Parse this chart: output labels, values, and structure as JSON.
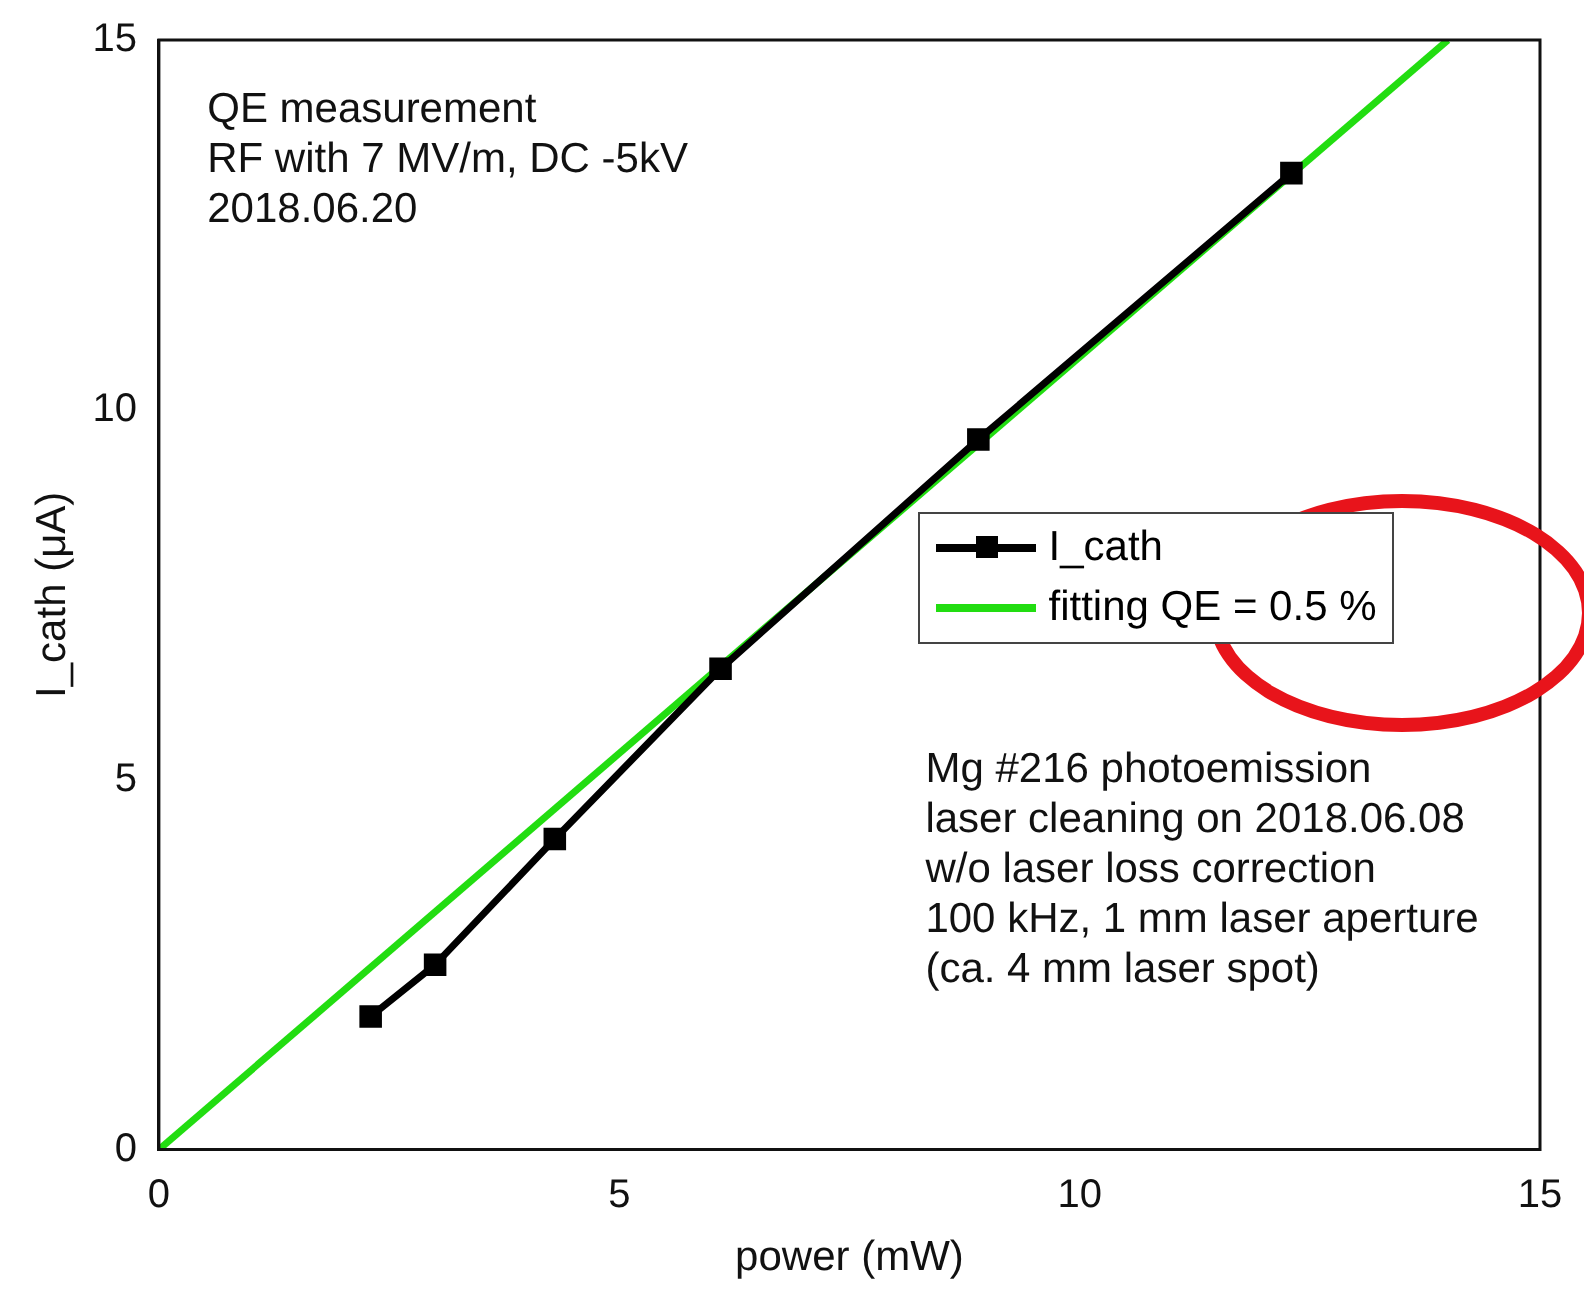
{
  "chart_data": {
    "type": "line",
    "xlabel": "power (mW)",
    "ylabel": "I_cath (μA)",
    "xlim": [
      0,
      15
    ],
    "xticks": [
      0,
      5,
      10,
      15
    ],
    "ylim": [
      0,
      15
    ],
    "yticks": [
      0,
      5,
      10,
      15
    ],
    "grid": false,
    "legend": "right",
    "series": [
      {
        "name": "I_cath",
        "color": "#000000",
        "marker": "square",
        "x": [
          2.3,
          3.0,
          4.3,
          6.1,
          8.9,
          12.3
        ],
        "values": [
          1.8,
          2.5,
          4.2,
          6.5,
          9.6,
          13.2
        ]
      },
      {
        "name": "fitting QE = 0.5 %",
        "color": "#22dd11",
        "marker": "none",
        "x": [
          0,
          14
        ],
        "values": [
          0,
          15
        ]
      }
    ],
    "annotations": [
      "QE measurement\nRF with 7 MV/m, DC -5kV\n2018.06.20",
      "Mg #216 photoemission\nlaser cleaning on 2018.06.08\nw/o laser loss correction\n100 kHz, 1 mm laser aperture\n(ca. 4 mm laser spot)"
    ]
  }
}
